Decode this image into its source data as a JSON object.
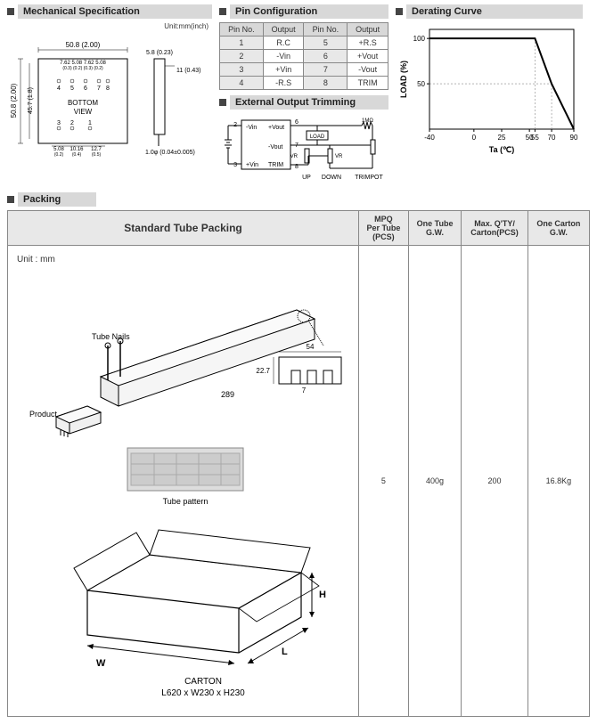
{
  "sections": {
    "mech": "Mechanical Specification",
    "pin": "Pin Configuration",
    "trim": "External Output Trimming",
    "derating": "Derating Curve",
    "packing": "Packing"
  },
  "mech": {
    "unit_label": "Unit:mm(inch)",
    "w_total": "50.8 (2.00)",
    "h_total": "50.8 (2.00)",
    "h_inner": "45.7 (1.8)",
    "dim_a": "7.62",
    "dim_b": "5.08",
    "dim_c": "7.62",
    "dim_d": "5.08",
    "dim_row2": "(0.3) (0.2) (0.3) (0.2)",
    "bottom_label": "BOTTOM\nVIEW",
    "bl_a": "5.08",
    "bl_a2": "(0.2)",
    "bl_b": "10.16",
    "bl_b2": "(0.4)",
    "bl_c": "12.7",
    "bl_c2": "(0.5)",
    "side_w": "5.8 (0.23)",
    "side_h": "11 (0.43)",
    "side_pin": "1.0φ (0.04±0.005)",
    "pins_top": [
      "4",
      "5",
      "6",
      "7",
      "8"
    ],
    "pins_bot": [
      "3",
      "2",
      "1"
    ]
  },
  "pin_table": {
    "headers": [
      "Pin No.",
      "Output",
      "Pin No.",
      "Output"
    ],
    "rows": [
      [
        "1",
        "R.C",
        "5",
        "+R.S"
      ],
      [
        "2",
        "-Vin",
        "6",
        "+Vout"
      ],
      [
        "3",
        "+Vin",
        "7",
        "-Vout"
      ],
      [
        "4",
        "-R.S",
        "8",
        "TRIM"
      ]
    ]
  },
  "trim": {
    "p2": "2",
    "p3": "3",
    "p6": "6",
    "p7": "7",
    "p8": "8",
    "l_nvin": "-Vin",
    "l_pvin": "+Vin",
    "l_pvout": "+Vout",
    "l_nvout": "-Vout",
    "l_trim": "TRIM",
    "l_load": "LOAD",
    "l_vr": "VR",
    "l_1m": "1MΩ",
    "l_up": "UP",
    "l_down": "DOWN",
    "l_trimpot": "TRIMPOT"
  },
  "derating": {
    "y_label": "LOAD (%)",
    "x_label": "Ta (℃)",
    "y_ticks": [
      "50",
      "100"
    ],
    "x_ticks": [
      "-40",
      "0",
      "25",
      "50",
      "55",
      "70",
      "90"
    ],
    "curve": [
      [
        -40,
        100
      ],
      [
        55,
        100
      ],
      [
        70,
        50
      ],
      [
        90,
        0
      ]
    ],
    "xlim": [
      -40,
      90
    ],
    "ylim": [
      0,
      110
    ],
    "plot_bg": "#ffffff",
    "line_color": "#000000",
    "line_width": 2,
    "grid_color": "#888888"
  },
  "packing_table": {
    "headers": [
      "Standard  Tube  Packing",
      "MPQ\nPer Tube\n(PCS)",
      "One Tube\nG.W.",
      "Max. Q'TY/\nCarton(PCS)",
      "One Carton\nG.W."
    ],
    "values": [
      "5",
      "400g",
      "200",
      "16.8Kg"
    ]
  },
  "packing_diagram": {
    "unit": "Unit : mm",
    "tube_nails": "Tube Nails",
    "product": "Product",
    "tube_len": "289",
    "prof_w": "54",
    "prof_h": "22.7",
    "prof_gap": "7",
    "tube_pattern": "Tube pattern",
    "carton_label": "CARTON",
    "carton_dims": "L620 x W230 x H230",
    "W": "W",
    "L": "L",
    "H": "H"
  }
}
